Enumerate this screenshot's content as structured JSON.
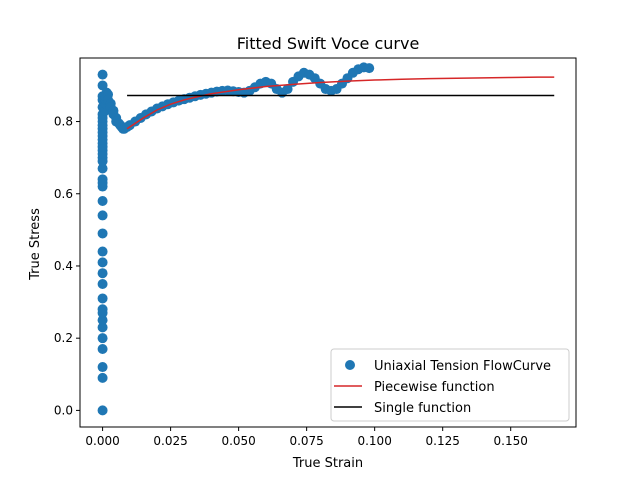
{
  "chart_data": {
    "type": "scatter",
    "title": "Fitted Swift Voce curve",
    "xlabel": "True Strain",
    "ylabel": "True Stress",
    "xlim": [
      -0.0083,
      0.174
    ],
    "ylim": [
      -0.046,
      0.976
    ],
    "xticks": [
      0.0,
      0.025,
      0.05,
      0.075,
      0.1,
      0.125,
      0.15
    ],
    "xtick_labels": [
      "0.000",
      "0.025",
      "0.050",
      "0.075",
      "0.100",
      "0.125",
      "0.150"
    ],
    "yticks": [
      0.0,
      0.2,
      0.4,
      0.6,
      0.8
    ],
    "ytick_labels": [
      "0.0",
      "0.2",
      "0.4",
      "0.6",
      "0.8"
    ],
    "grid": false,
    "legend_position": "lower-right",
    "series": [
      {
        "name": "Uniaxial Tension FlowCurve",
        "kind": "scatter",
        "color": "#1f77b4",
        "x": [
          0.0,
          0.0,
          0.0,
          0.0,
          0.0,
          0.0,
          0.0,
          0.0,
          0.0,
          0.0,
          0.0,
          0.0,
          0.0,
          0.0,
          0.0,
          0.0,
          0.0,
          0.0,
          0.0,
          0.0,
          0.0,
          0.0,
          0.0,
          0.0,
          0.0,
          0.0,
          0.0,
          0.0,
          0.0,
          0.0,
          0.0,
          0.0,
          0.0,
          0.0,
          0.0,
          0.0,
          0.0,
          0.0,
          0.0,
          0.0,
          0.001,
          0.001,
          0.001,
          0.001,
          0.0015,
          0.002,
          0.002,
          0.003,
          0.003,
          0.004,
          0.004,
          0.005,
          0.005,
          0.006,
          0.0065,
          0.007,
          0.0075,
          0.008,
          0.009,
          0.01,
          0.012,
          0.014,
          0.016,
          0.018,
          0.02,
          0.022,
          0.024,
          0.026,
          0.028,
          0.03,
          0.032,
          0.034,
          0.036,
          0.038,
          0.04,
          0.042,
          0.044,
          0.046,
          0.048,
          0.05,
          0.052,
          0.054,
          0.056,
          0.058,
          0.06,
          0.062,
          0.064,
          0.066,
          0.068,
          0.07,
          0.072,
          0.074,
          0.076,
          0.078,
          0.08,
          0.082,
          0.084,
          0.086,
          0.088,
          0.09,
          0.092,
          0.094,
          0.096,
          0.098
        ],
        "y": [
          0.0,
          0.09,
          0.12,
          0.17,
          0.2,
          0.23,
          0.25,
          0.27,
          0.28,
          0.31,
          0.35,
          0.38,
          0.41,
          0.44,
          0.49,
          0.54,
          0.58,
          0.62,
          0.64,
          0.67,
          0.7,
          0.72,
          0.74,
          0.76,
          0.78,
          0.8,
          0.82,
          0.84,
          0.86,
          0.87,
          0.9,
          0.93,
          0.63,
          0.69,
          0.71,
          0.73,
          0.75,
          0.77,
          0.79,
          0.81,
          0.83,
          0.85,
          0.86,
          0.87,
          0.88,
          0.875,
          0.86,
          0.85,
          0.84,
          0.83,
          0.82,
          0.81,
          0.8,
          0.795,
          0.79,
          0.785,
          0.78,
          0.78,
          0.785,
          0.79,
          0.8,
          0.81,
          0.82,
          0.828,
          0.836,
          0.842,
          0.848,
          0.853,
          0.858,
          0.862,
          0.866,
          0.87,
          0.874,
          0.877,
          0.88,
          0.883,
          0.885,
          0.886,
          0.884,
          0.882,
          0.88,
          0.885,
          0.895,
          0.905,
          0.91,
          0.905,
          0.89,
          0.88,
          0.89,
          0.91,
          0.925,
          0.935,
          0.93,
          0.92,
          0.905,
          0.89,
          0.885,
          0.89,
          0.905,
          0.92,
          0.935,
          0.945,
          0.95,
          0.948
        ]
      },
      {
        "name": "Piecewise function",
        "kind": "line",
        "color": "#d62728",
        "x": [
          0.009,
          0.015,
          0.02,
          0.025,
          0.03,
          0.035,
          0.04,
          0.05,
          0.06,
          0.07,
          0.08,
          0.09,
          0.1,
          0.11,
          0.12,
          0.13,
          0.14,
          0.15,
          0.16,
          0.166
        ],
        "y": [
          0.78,
          0.81,
          0.832,
          0.848,
          0.86,
          0.869,
          0.877,
          0.888,
          0.897,
          0.903,
          0.908,
          0.912,
          0.915,
          0.917,
          0.919,
          0.92,
          0.921,
          0.922,
          0.923,
          0.923
        ]
      },
      {
        "name": "Single function",
        "kind": "line",
        "color": "#000000",
        "x": [
          0.009,
          0.166
        ],
        "y": [
          0.872,
          0.872
        ]
      }
    ]
  }
}
